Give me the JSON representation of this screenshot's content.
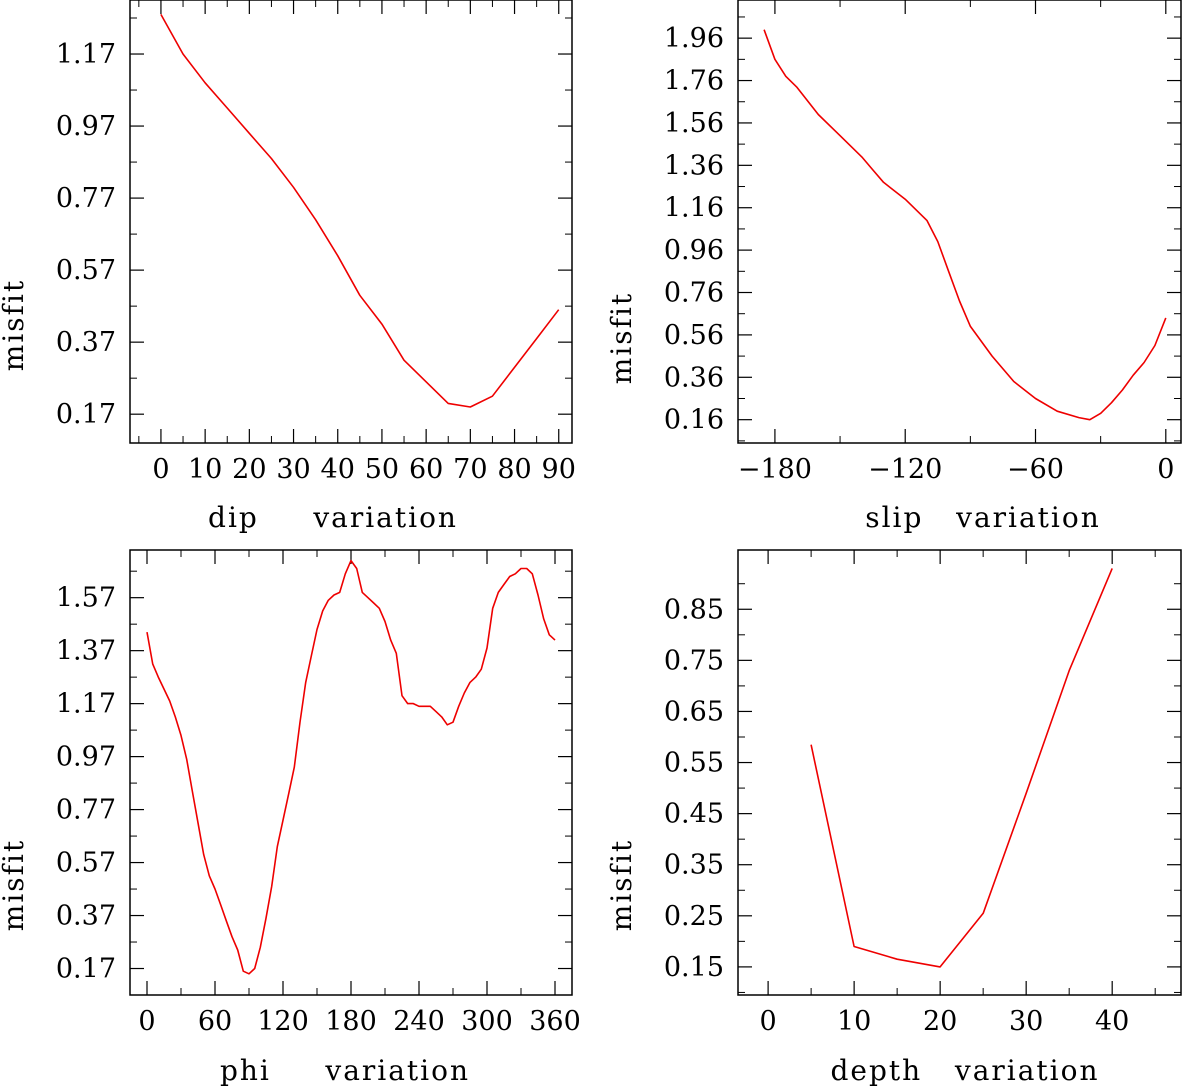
{
  "chart_data": [
    {
      "type": "line",
      "xlabel": "dip     variation",
      "ylabel": "misfit",
      "xlim": [
        -7,
        93
      ],
      "ylim": [
        0.09,
        1.32
      ],
      "xticks": [
        0,
        10,
        20,
        30,
        40,
        50,
        60,
        70,
        80,
        90
      ],
      "xtick_labels": [
        "0",
        "10",
        "20",
        "30",
        "40",
        "50",
        "60",
        "70",
        "80",
        "90"
      ],
      "yticks": [
        0.17,
        0.37,
        0.57,
        0.77,
        0.97,
        1.17
      ],
      "ytick_labels": [
        "0.17",
        "0.37",
        "0.57",
        "0.77",
        "0.97",
        "1.17"
      ],
      "series": [
        {
          "name": "misfit",
          "color": "#ee0000",
          "x": [
            0,
            5,
            10,
            15,
            20,
            25,
            30,
            35,
            40,
            45,
            50,
            55,
            60,
            65,
            70,
            75,
            80,
            85,
            90
          ],
          "y": [
            1.28,
            1.17,
            1.09,
            1.02,
            0.95,
            0.88,
            0.8,
            0.71,
            0.61,
            0.5,
            0.42,
            0.32,
            0.26,
            0.2,
            0.19,
            0.22,
            0.3,
            0.38,
            0.46
          ]
        }
      ]
    },
    {
      "type": "line",
      "xlabel": "slip   variation",
      "ylabel": "misfit",
      "xlim": [
        -197,
        7
      ],
      "ylim": [
        0.05,
        2.14
      ],
      "xticks": [
        -180,
        -120,
        -60,
        0
      ],
      "xtick_labels": [
        "−180",
        "−120",
        "−60",
        "0"
      ],
      "yticks": [
        0.16,
        0.36,
        0.56,
        0.76,
        0.96,
        1.16,
        1.36,
        1.56,
        1.76,
        1.96
      ],
      "ytick_labels": [
        "0.16",
        "0.36",
        "0.56",
        "0.76",
        "0.96",
        "1.16",
        "1.36",
        "1.56",
        "1.76",
        "1.96"
      ],
      "series": [
        {
          "name": "misfit",
          "color": "#ee0000",
          "x": [
            -185,
            -180,
            -175,
            -170,
            -160,
            -150,
            -140,
            -135,
            -130,
            -120,
            -110,
            -105,
            -100,
            -95,
            -90,
            -80,
            -70,
            -65,
            -60,
            -50,
            -40,
            -35,
            -30,
            -25,
            -20,
            -15,
            -10,
            -5,
            0
          ],
          "y": [
            2.0,
            1.86,
            1.78,
            1.73,
            1.6,
            1.5,
            1.4,
            1.34,
            1.28,
            1.2,
            1.1,
            1.0,
            0.86,
            0.72,
            0.6,
            0.46,
            0.34,
            0.3,
            0.26,
            0.2,
            0.17,
            0.16,
            0.19,
            0.24,
            0.3,
            0.37,
            0.43,
            0.51,
            0.64
          ]
        }
      ]
    },
    {
      "type": "line",
      "xlabel": "phi     variation",
      "ylabel": "misfit",
      "xlim": [
        -15,
        375
      ],
      "ylim": [
        0.07,
        1.75
      ],
      "xticks": [
        0,
        60,
        120,
        180,
        240,
        300,
        360
      ],
      "xtick_labels": [
        "0",
        "60",
        "120",
        "180",
        "240",
        "300",
        "360"
      ],
      "yticks": [
        0.17,
        0.37,
        0.57,
        0.77,
        0.97,
        1.17,
        1.37,
        1.57
      ],
      "ytick_labels": [
        "0.17",
        "0.37",
        "0.57",
        "0.77",
        "0.97",
        "1.17",
        "1.37",
        "1.57"
      ],
      "series": [
        {
          "name": "misfit",
          "color": "#ee0000",
          "x": [
            0,
            5,
            10,
            20,
            25,
            30,
            35,
            40,
            45,
            50,
            55,
            60,
            65,
            70,
            75,
            80,
            85,
            90,
            95,
            100,
            105,
            110,
            115,
            120,
            125,
            130,
            135,
            140,
            145,
            150,
            155,
            160,
            165,
            170,
            175,
            180,
            185,
            190,
            195,
            200,
            205,
            210,
            215,
            220,
            225,
            230,
            235,
            240,
            245,
            250,
            255,
            260,
            265,
            270,
            275,
            280,
            285,
            290,
            295,
            300,
            305,
            310,
            315,
            320,
            325,
            330,
            335,
            340,
            345,
            350,
            355,
            360
          ],
          "y": [
            1.44,
            1.32,
            1.27,
            1.18,
            1.12,
            1.05,
            0.96,
            0.84,
            0.72,
            0.6,
            0.52,
            0.47,
            0.41,
            0.35,
            0.29,
            0.24,
            0.16,
            0.15,
            0.17,
            0.25,
            0.36,
            0.48,
            0.63,
            0.73,
            0.83,
            0.93,
            1.1,
            1.25,
            1.35,
            1.45,
            1.52,
            1.56,
            1.58,
            1.59,
            1.66,
            1.71,
            1.68,
            1.59,
            1.57,
            1.55,
            1.53,
            1.48,
            1.41,
            1.36,
            1.2,
            1.17,
            1.17,
            1.16,
            1.16,
            1.16,
            1.14,
            1.12,
            1.09,
            1.1,
            1.16,
            1.21,
            1.25,
            1.27,
            1.3,
            1.38,
            1.53,
            1.59,
            1.62,
            1.65,
            1.66,
            1.68,
            1.68,
            1.66,
            1.58,
            1.49,
            1.43,
            1.41
          ]
        }
      ]
    },
    {
      "type": "line",
      "xlabel": "depth   variation",
      "ylabel": "misfit",
      "xlim": [
        -3.5,
        48
      ],
      "ylim": [
        0.095,
        0.966
      ],
      "xticks": [
        0,
        10,
        20,
        30,
        40
      ],
      "xtick_labels": [
        "0",
        "10",
        "20",
        "30",
        "40"
      ],
      "yticks": [
        0.15,
        0.25,
        0.35,
        0.45,
        0.55,
        0.65,
        0.75,
        0.85
      ],
      "ytick_labels": [
        "0.15",
        "0.25",
        "0.35",
        "0.45",
        "0.55",
        "0.65",
        "0.75",
        "0.85"
      ],
      "series": [
        {
          "name": "misfit",
          "color": "#ee0000",
          "x": [
            5,
            10,
            15,
            20,
            25,
            30,
            35,
            40
          ],
          "y": [
            0.585,
            0.19,
            0.165,
            0.15,
            0.255,
            0.49,
            0.73,
            0.93
          ]
        }
      ]
    }
  ]
}
